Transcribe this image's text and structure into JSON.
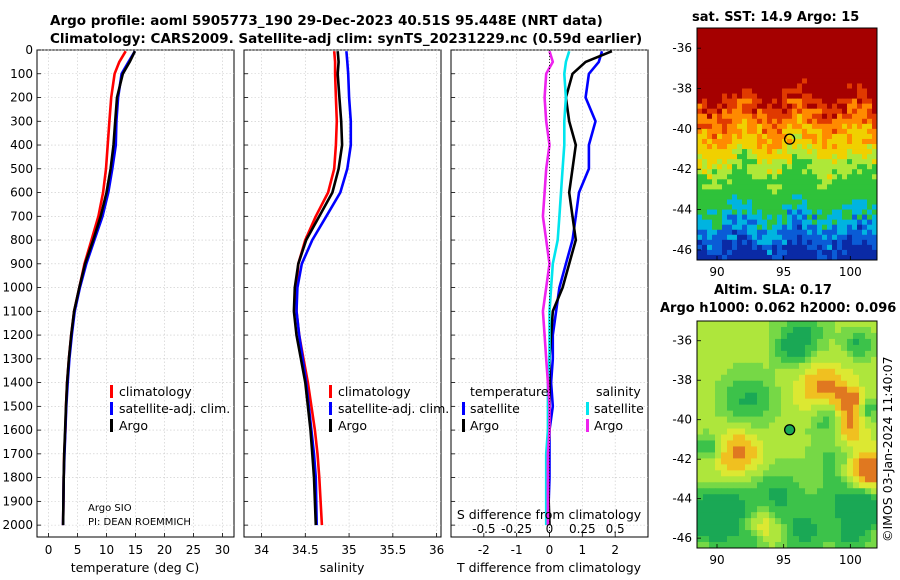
{
  "header": {
    "line1": "Argo profile: aoml 5905773_190 29-Dec-2023 40.51S 95.448E (NRT data)",
    "line2": "Climatology: CARS2009. Satellite-adj clim: synTS_20231229.nc (0.59d earlier)"
  },
  "credit": {
    "institution": "Argo SIO",
    "pi": "PI: DEAN ROEMMICH"
  },
  "stamp": "©IMOS 03-Jan-2024 11:40:07",
  "colors": {
    "climatology": "#ff0000",
    "satellite": "#0000ff",
    "argo": "#000000",
    "cyan": "#00e5ee",
    "magenta": "#ee22ee"
  },
  "chart_data": [
    {
      "type": "line",
      "id": "temperature",
      "xlabel": "temperature (deg C)",
      "xlim": [
        -2,
        32
      ],
      "xticks": [
        0,
        5,
        10,
        15,
        20,
        25,
        30
      ],
      "ylim": [
        0,
        2050
      ],
      "yticks": [
        0,
        100,
        200,
        300,
        400,
        500,
        600,
        700,
        800,
        900,
        1000,
        1100,
        1200,
        1300,
        1400,
        1500,
        1600,
        1700,
        1800,
        1900,
        2000
      ],
      "legend": {
        "position": "lower-right",
        "entries": [
          "climatology",
          "satellite-adj. clim.",
          "Argo"
        ]
      },
      "series": [
        {
          "name": "climatology",
          "color": "#ff0000",
          "x": [
            13.3,
            12.2,
            11.4,
            10.8,
            10.5,
            10.2,
            9.9,
            9.4,
            8.6,
            7.4,
            6.2,
            5.3,
            4.4,
            3.9,
            3.5,
            3.2,
            3.0,
            2.9,
            2.7,
            2.6,
            2.5
          ],
          "y": [
            5,
            50,
            100,
            200,
            300,
            400,
            500,
            600,
            700,
            800,
            900,
            1000,
            1100,
            1200,
            1300,
            1400,
            1500,
            1600,
            1700,
            1800,
            2000
          ]
        },
        {
          "name": "satellite-adj. clim.",
          "color": "#0000ff",
          "x": [
            14.9,
            13.8,
            12.6,
            12.0,
            11.7,
            11.6,
            11.0,
            10.3,
            9.3,
            7.9,
            6.5,
            5.4,
            4.5,
            4.0,
            3.6,
            3.3,
            3.05,
            2.9,
            2.75,
            2.6,
            2.5
          ],
          "y": [
            5,
            50,
            100,
            200,
            300,
            400,
            500,
            600,
            700,
            800,
            900,
            1000,
            1100,
            1200,
            1300,
            1400,
            1500,
            1600,
            1700,
            1800,
            2000
          ]
        },
        {
          "name": "Argo",
          "color": "#000000",
          "x": [
            14.9,
            14.0,
            12.8,
            11.8,
            11.5,
            11.2,
            10.7,
            10.0,
            9.0,
            7.7,
            6.3,
            5.3,
            4.4,
            3.9,
            3.5,
            3.2,
            3.0,
            2.85,
            2.7,
            2.6,
            2.5
          ],
          "y": [
            5,
            50,
            100,
            200,
            300,
            400,
            500,
            600,
            700,
            800,
            900,
            1000,
            1100,
            1200,
            1300,
            1400,
            1500,
            1600,
            1700,
            1800,
            2000
          ]
        }
      ]
    },
    {
      "type": "line",
      "id": "salinity",
      "xlabel": "salinity",
      "xlim": [
        33.8,
        36.05
      ],
      "xticks": [
        34,
        34.5,
        35,
        35.5,
        36
      ],
      "ylim": [
        0,
        2050
      ],
      "legend": {
        "position": "lower-right",
        "entries": [
          "climatology",
          "satellite-adj. clim.",
          "Argo"
        ]
      },
      "series": [
        {
          "name": "climatology",
          "color": "#ff0000",
          "x": [
            34.83,
            34.84,
            34.84,
            34.85,
            34.86,
            34.85,
            34.83,
            34.76,
            34.62,
            34.5,
            34.42,
            34.4,
            34.4,
            34.43,
            34.48,
            34.53,
            34.57,
            34.61,
            34.64,
            34.66,
            34.69
          ],
          "y": [
            5,
            50,
            100,
            200,
            300,
            400,
            500,
            600,
            700,
            800,
            900,
            1000,
            1100,
            1200,
            1300,
            1400,
            1500,
            1600,
            1700,
            1800,
            2000
          ]
        },
        {
          "name": "satellite-adj. clim.",
          "color": "#0000ff",
          "x": [
            34.97,
            34.98,
            34.99,
            35.0,
            35.02,
            35.02,
            34.98,
            34.9,
            34.74,
            34.58,
            34.46,
            34.41,
            34.4,
            34.43,
            34.47,
            34.51,
            34.54,
            34.57,
            34.6,
            34.62,
            34.63
          ],
          "y": [
            5,
            50,
            100,
            200,
            300,
            400,
            500,
            600,
            700,
            800,
            900,
            1000,
            1100,
            1200,
            1300,
            1400,
            1500,
            1600,
            1700,
            1800,
            2000
          ]
        },
        {
          "name": "Argo",
          "color": "#000000",
          "x": [
            34.87,
            34.88,
            34.87,
            34.89,
            34.91,
            34.92,
            34.88,
            34.81,
            34.66,
            34.51,
            34.42,
            34.38,
            34.37,
            34.4,
            34.45,
            34.5,
            34.53,
            34.56,
            34.58,
            34.6,
            34.62
          ],
          "y": [
            5,
            50,
            100,
            200,
            300,
            400,
            500,
            600,
            700,
            800,
            900,
            1000,
            1100,
            1200,
            1300,
            1400,
            1500,
            1600,
            1700,
            1800,
            2000
          ]
        }
      ]
    },
    {
      "type": "line",
      "id": "differences",
      "xlabel": "T difference from climatology",
      "xlabel_top": "S difference from climatology",
      "xlim": [
        -3,
        3
      ],
      "xticks": [
        -2,
        -1,
        0,
        1,
        2
      ],
      "xticks_top_values": [
        -0.5,
        -0.25,
        0,
        0.25,
        0.5
      ],
      "xticks_top": [
        "-0.5",
        "-0.25",
        "0",
        "0.25",
        "0.5"
      ],
      "ylim": [
        0,
        2050
      ],
      "legend": {
        "position": "lower-center",
        "temperature_header": "temperature",
        "salinity_header": "salinity",
        "temperature_entries": [
          "satellite",
          "Argo"
        ],
        "salinity_entries": [
          "satellite",
          "Argo"
        ]
      },
      "series": [
        {
          "name": "T satellite",
          "color": "#0000ff",
          "x": [
            1.6,
            1.5,
            1.2,
            1.1,
            1.4,
            1.2,
            1.2,
            0.9,
            0.8,
            0.7,
            0.5,
            0.3,
            0.2,
            0.1,
            0.1,
            0.05,
            0.1,
            0.0,
            0.0,
            0.0,
            -0.05
          ],
          "y": [
            5,
            50,
            100,
            200,
            300,
            400,
            500,
            600,
            700,
            800,
            900,
            1000,
            1100,
            1200,
            1300,
            1400,
            1500,
            1600,
            1700,
            1800,
            2000
          ]
        },
        {
          "name": "T Argo",
          "color": "#000000",
          "x": [
            1.9,
            1.1,
            0.7,
            0.5,
            0.6,
            0.8,
            0.7,
            0.6,
            0.7,
            0.8,
            0.6,
            0.4,
            0.1,
            0.05,
            0.0,
            0.0,
            0.0,
            0.0,
            -0.05,
            -0.05,
            0.0
          ],
          "y": [
            5,
            50,
            100,
            200,
            300,
            400,
            500,
            600,
            700,
            800,
            900,
            1000,
            1100,
            1200,
            1300,
            1400,
            1500,
            1600,
            1700,
            1800,
            2000
          ]
        },
        {
          "name": "S satellite",
          "color": "#00e5ee",
          "x": [
            0.6,
            0.5,
            0.45,
            0.5,
            0.45,
            0.45,
            0.4,
            0.35,
            0.3,
            0.25,
            0.1,
            0.05,
            0.0,
            0.0,
            0.0,
            -0.05,
            -0.05,
            -0.05,
            -0.1,
            -0.1,
            -0.1
          ],
          "y": [
            5,
            50,
            100,
            200,
            300,
            400,
            500,
            600,
            700,
            800,
            900,
            1000,
            1100,
            1200,
            1300,
            1400,
            1500,
            1600,
            1700,
            1800,
            2000
          ]
        },
        {
          "name": "S Argo",
          "color": "#ee22ee",
          "x": [
            0.0,
            0.1,
            -0.1,
            -0.15,
            -0.1,
            0.0,
            -0.1,
            -0.15,
            -0.2,
            -0.1,
            0.0,
            -0.1,
            -0.2,
            -0.15,
            -0.1,
            -0.05,
            0.0,
            0.0,
            -0.05,
            -0.05,
            -0.05
          ],
          "y": [
            5,
            50,
            100,
            200,
            300,
            400,
            500,
            600,
            700,
            800,
            900,
            1000,
            1100,
            1200,
            1300,
            1400,
            1500,
            1600,
            1700,
            1800,
            2000
          ]
        }
      ]
    },
    {
      "type": "heatmap",
      "id": "sst-map",
      "title": "sat. SST: 14.9 Argo: 15",
      "xlim": [
        88.5,
        102
      ],
      "ylim": [
        -46.5,
        -35
      ],
      "xticks": [
        90,
        95,
        100
      ],
      "yticks": [
        -36,
        -38,
        -40,
        -42,
        -44,
        -46
      ],
      "float_position": {
        "lon": 95.448,
        "lat": -40.51
      }
    },
    {
      "type": "heatmap",
      "id": "sla-map",
      "title_line1": "Altim. SLA: 0.17",
      "title_line2": "Argo h1000: 0.062 h2000: 0.096",
      "xlim": [
        88.5,
        102
      ],
      "ylim": [
        -46.5,
        -35
      ],
      "xticks": [
        90,
        95,
        100
      ],
      "yticks": [
        -36,
        -38,
        -40,
        -42,
        -44,
        -46
      ],
      "float_position": {
        "lon": 95.448,
        "lat": -40.51
      }
    }
  ]
}
